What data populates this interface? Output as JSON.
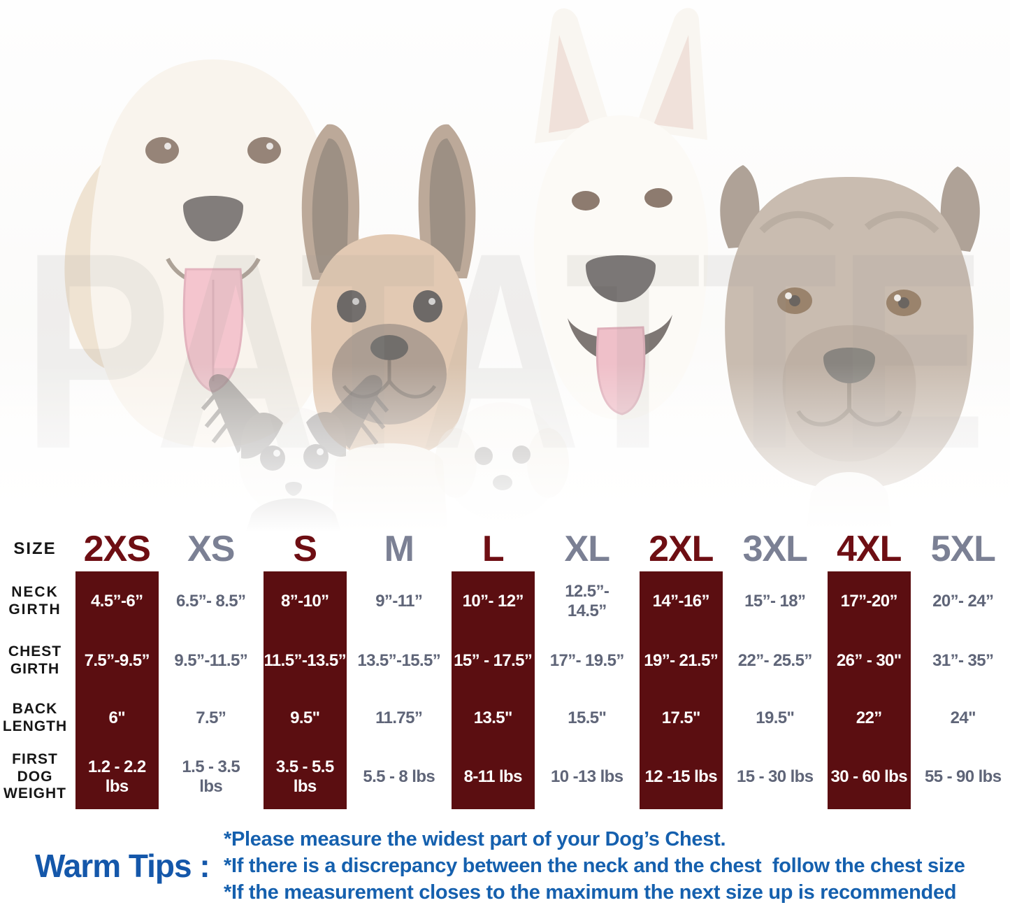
{
  "watermark": "PATATTE",
  "photo": {
    "dogs": [
      "golden-retriever",
      "french-bulldog",
      "chihuahua",
      "bichon-frise",
      "white-shepherd",
      "pit-bull"
    ]
  },
  "chart_data": {
    "type": "table",
    "row_labels": [
      "SIZE",
      "NECK GIRTH",
      "CHEST GIRTH",
      "BACK LENGTH",
      "FIRST DOG WEIGHT"
    ],
    "row_labels_display": {
      "size": "SIZE",
      "neck": "NECK\nGIRTH",
      "chest": "CHEST\nGIRTH",
      "back": "BACK\nLENGTH",
      "weight": "FIRST\nDOG\nWEIGHT"
    },
    "columns": [
      {
        "size": "2XS",
        "neck": "4.5”-6”",
        "chest": "7.5”-9.5”",
        "back": "6\"",
        "weight": "1.2 - 2.2 lbs",
        "highlight": true
      },
      {
        "size": "XS",
        "neck": "6.5”- 8.5”",
        "chest": "9.5”-11.5”",
        "back": "7.5”",
        "weight": "1.5 - 3.5 lbs",
        "highlight": false
      },
      {
        "size": "S",
        "neck": "8”-10”",
        "chest": "11.5”-13.5”",
        "back": "9.5\"",
        "weight": "3.5 - 5.5 lbs",
        "highlight": true
      },
      {
        "size": "M",
        "neck": "9”-11”",
        "chest": "13.5”-15.5”",
        "back": "11.75”",
        "weight": "5.5 - 8 lbs",
        "highlight": false
      },
      {
        "size": "L",
        "neck": "10”- 12”",
        "chest": "15” - 17.5”",
        "back": "13.5\"",
        "weight": "8-11 lbs",
        "highlight": true
      },
      {
        "size": "XL",
        "neck": "12.5”- 14.5”",
        "chest": "17”- 19.5”",
        "back": "15.5\"",
        "weight": "10 -13 lbs",
        "highlight": false
      },
      {
        "size": "2XL",
        "neck": "14”-16”",
        "chest": "19”- 21.5”",
        "back": "17.5\"",
        "weight": "12 -15 lbs",
        "highlight": true
      },
      {
        "size": "3XL",
        "neck": "15”- 18”",
        "chest": "22”- 25.5”",
        "back": "19.5\"",
        "weight": "15 - 30 lbs",
        "highlight": false
      },
      {
        "size": "4XL",
        "neck": "17”-20”",
        "chest": "26” - 30\"",
        "back": "22”",
        "weight": "30 - 60 lbs",
        "highlight": true
      },
      {
        "size": "5XL",
        "neck": "20”- 24”",
        "chest": "31”- 35”",
        "back": "24\"",
        "weight": "55 - 90 lbs",
        "highlight": false
      }
    ],
    "highlighted_sizes": [
      "2XS",
      "S",
      "L",
      "2XL",
      "4XL"
    ],
    "colors": {
      "highlight_bar": "#5b0e11",
      "highlight_header_text": "#6e0e13",
      "plain_header_text": "#7b8094",
      "value_text": "#5f6578",
      "highlight_value_text": "#ffffff",
      "tips_blue": "#1560ae"
    }
  },
  "tips": {
    "label": "Warm Tips :",
    "lines": [
      "*Please measure the widest part of your Dog’s Chest.",
      "*If there is a discrepancy between the neck and the chest  follow the chest size",
      "*If the measurement closes to the maximum the next size up is recommended"
    ]
  }
}
